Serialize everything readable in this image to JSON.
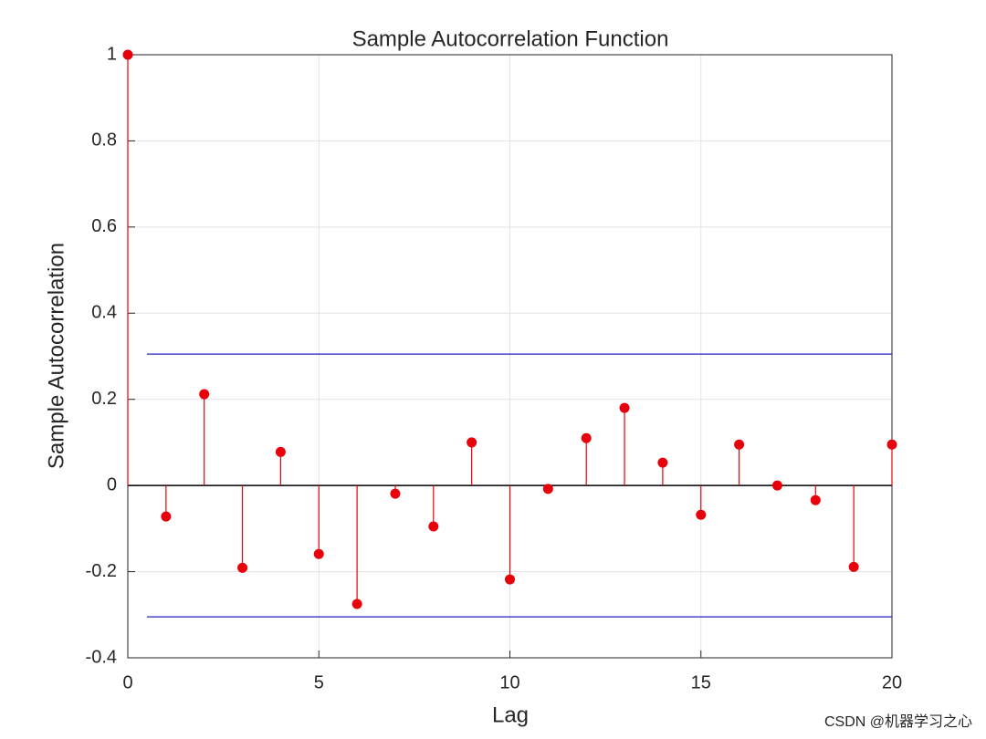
{
  "chart_data": {
    "type": "stem",
    "title": "Sample Autocorrelation Function",
    "xlabel": "Lag",
    "ylabel": "Sample Autocorrelation",
    "x": [
      0,
      1,
      2,
      3,
      4,
      5,
      6,
      7,
      8,
      9,
      10,
      11,
      12,
      13,
      14,
      15,
      16,
      17,
      18,
      19,
      20
    ],
    "values": [
      1,
      -0.072,
      0.212,
      -0.191,
      0.078,
      -0.159,
      -0.275,
      -0.019,
      -0.095,
      0.1,
      -0.218,
      -0.008,
      0.11,
      0.18,
      0.053,
      -0.068,
      0.095,
      0,
      -0.034,
      -0.189,
      0.095
    ],
    "color": "#e8000b",
    "bounds": [
      0.305,
      -0.305
    ],
    "bounds_color": "#2020c0",
    "xlim": [
      0,
      20
    ],
    "xticks": [
      0,
      5,
      10,
      15,
      20
    ],
    "ylim": [
      -0.4,
      1
    ],
    "yticks": [
      -0.4,
      -0.2,
      0,
      0.2,
      0.4,
      0.6,
      0.8,
      1
    ],
    "grid": true
  },
  "watermark": "CSDN @机器学习之心"
}
